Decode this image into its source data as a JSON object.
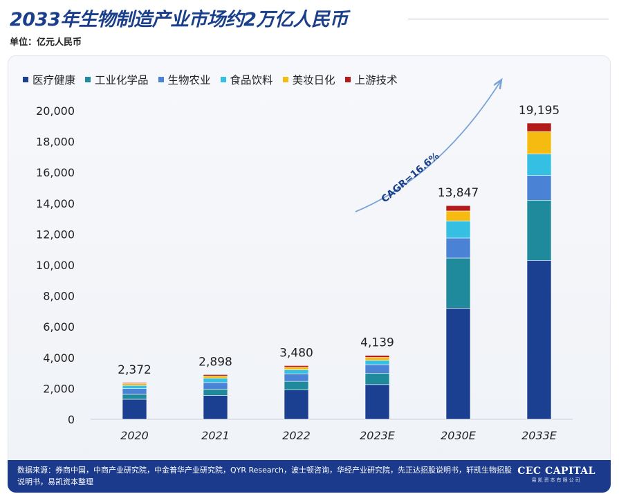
{
  "title": "2033年生物制造产业市场约2万亿人民币",
  "unit_label": "单位：亿元人民币",
  "footer": {
    "source_text": "数据来源：券商中国，中商产业研究院，中金普华产业研究院，QYR Research，波士顿咨询，华经产业研究院，先正达招股说明书，轩凯生物招股说明书，易凯资本整理",
    "logo_main": "CEC CAPITAL",
    "logo_sub": "易凯资本有限公司"
  },
  "colors": {
    "title": "#1b3f8a",
    "footer_bg": "#1b3a8c",
    "arrow": "#7aa3d6"
  },
  "chart_data": {
    "type": "bar",
    "stacked": true,
    "categories": [
      "2020",
      "2021",
      "2022",
      "2023E",
      "2030E",
      "2033E"
    ],
    "totals": [
      2372,
      2898,
      3480,
      4139,
      13847,
      19195
    ],
    "total_labels": [
      "2,372",
      "2,898",
      "3,480",
      "4,139",
      "13,847",
      "19,195"
    ],
    "ylim": [
      0,
      20000
    ],
    "yticks": [
      0,
      2000,
      4000,
      6000,
      8000,
      10000,
      12000,
      14000,
      16000,
      18000,
      20000
    ],
    "ytick_labels": [
      "0",
      "2,000",
      "4,000",
      "6,000",
      "8,000",
      "10,000",
      "12,000",
      "14,000",
      "16,000",
      "18,000",
      "20,000"
    ],
    "grid": false,
    "legend_position": "top-left",
    "series": [
      {
        "name": "医疗健康",
        "color": "#1b3f91",
        "values": [
          1300,
          1550,
          1900,
          2250,
          7200,
          10300
        ]
      },
      {
        "name": "工业化学品",
        "color": "#1f8a9c",
        "values": [
          320,
          400,
          560,
          730,
          3250,
          3900
        ]
      },
      {
        "name": "生物农业",
        "color": "#4a82d6",
        "values": [
          370,
          430,
          480,
          560,
          1300,
          1600
        ]
      },
      {
        "name": "食品饮料",
        "color": "#35bfe3",
        "values": [
          200,
          280,
          270,
          280,
          1100,
          1400
        ]
      },
      {
        "name": "美妆日化",
        "color": "#f5bb10",
        "values": [
          120,
          150,
          170,
          190,
          650,
          1450
        ]
      },
      {
        "name": "上游技术",
        "color": "#b31a1a",
        "values": [
          62,
          88,
          100,
          129,
          347,
          545
        ]
      }
    ],
    "annotation": "CAGR=16.6%"
  }
}
